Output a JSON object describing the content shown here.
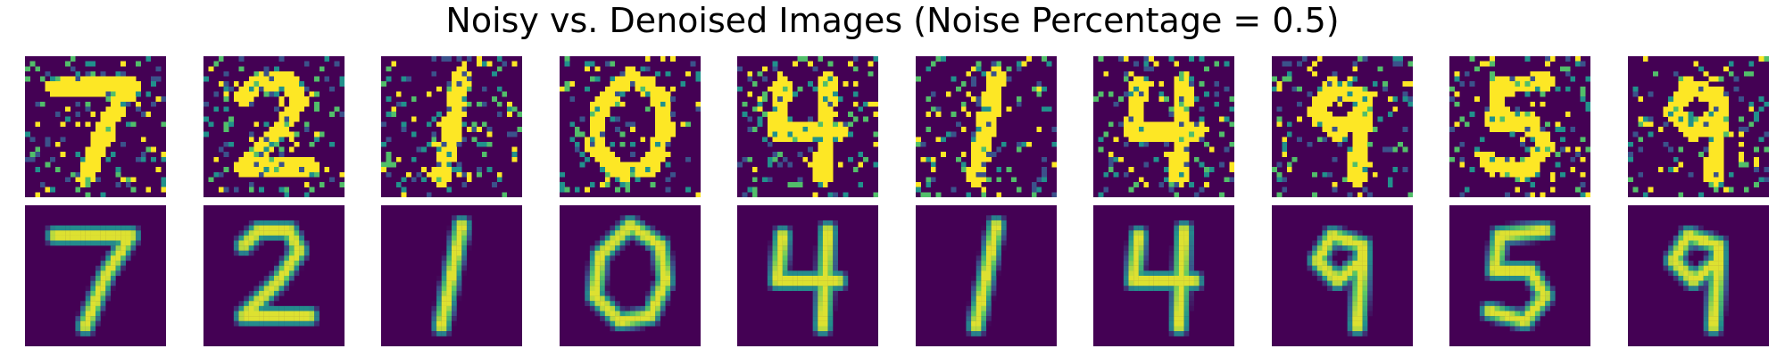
{
  "figure": {
    "title": "Noisy vs. Denoised Images (Noise Percentage = 0.5)"
  },
  "colormap": {
    "name": "viridis",
    "background": "#440154",
    "low": "#3b528b",
    "mid": "#21918c",
    "high_mid": "#5ec962",
    "high": "#fde725"
  },
  "rows": [
    {
      "name": "noisy"
    },
    {
      "name": "denoised"
    }
  ],
  "digits": [
    "7",
    "2",
    "1",
    "0",
    "4",
    "1",
    "4",
    "9",
    "5",
    "9"
  ]
}
